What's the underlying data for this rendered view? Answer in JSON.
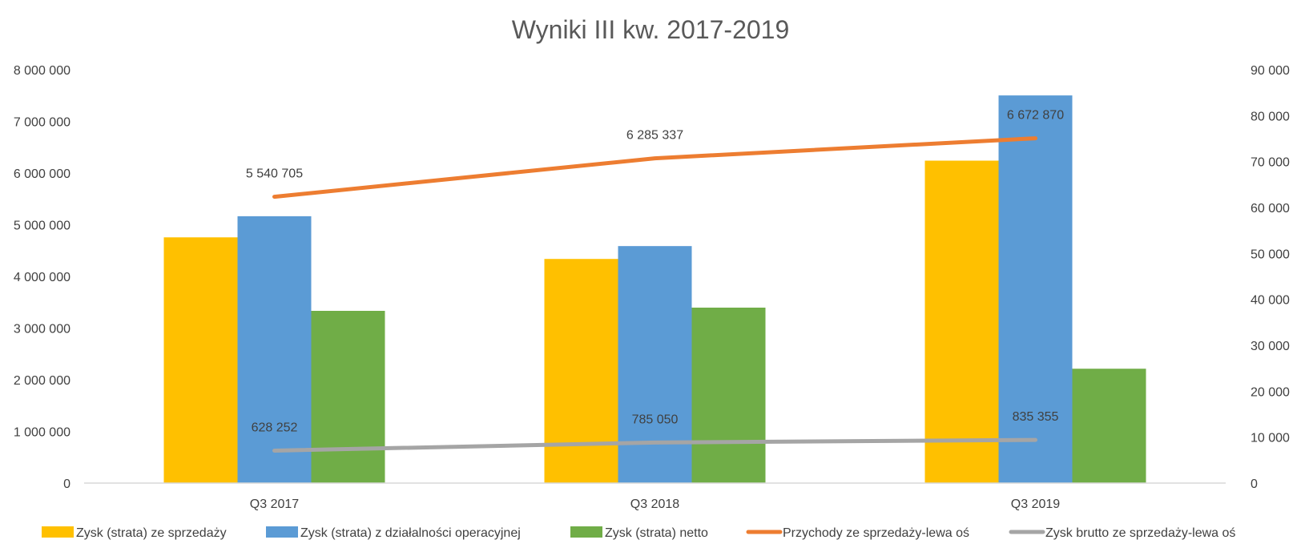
{
  "chart_data": {
    "title": "Wyniki III kw.  2017-2019",
    "type": "bar",
    "categories": [
      "Q3 2017",
      "Q3 2018",
      "Q3 2019"
    ],
    "left_axis": {
      "range": [
        0,
        8000000
      ],
      "ticks": [
        "0",
        "1 000 000",
        "2 000 000",
        "3 000 000",
        "4 000 000",
        "5 000 000",
        "6 000 000",
        "7 000 000",
        "8 000 000"
      ]
    },
    "right_axis": {
      "range": [
        0,
        90000
      ],
      "ticks": [
        "0",
        "10 000",
        "20 000",
        "30 000",
        "40 000",
        "50 000",
        "60 000",
        "70 000",
        "80 000",
        "90 000"
      ]
    },
    "series": [
      {
        "name": "Zysk (strata) ze sprzedaży",
        "type": "bar",
        "axis": "right",
        "color": "#FFC000",
        "values": [
          53500,
          48800,
          70200
        ]
      },
      {
        "name": "Zysk (strata) z działalności operacyjnej",
        "type": "bar",
        "axis": "right",
        "color": "#5B9BD5",
        "values": [
          58100,
          51600,
          84400
        ]
      },
      {
        "name": "Zysk (strata) netto",
        "type": "bar",
        "axis": "right",
        "color": "#70AD47",
        "values": [
          37500,
          38200,
          24900
        ]
      },
      {
        "name": "Przychody ze sprzedaży-lewa oś",
        "type": "line",
        "axis": "left",
        "color": "#ED7D31",
        "values": [
          5540705,
          6285337,
          6672870
        ],
        "labels": [
          "5 540 705",
          "6 285 337",
          "6 672 870"
        ]
      },
      {
        "name": "Zysk brutto ze sprzedaży-lewa oś",
        "type": "line",
        "axis": "left",
        "color": "#A5A5A5",
        "values": [
          628252,
          785050,
          835355
        ],
        "labels": [
          "628 252",
          "785 050",
          "835 355"
        ]
      }
    ],
    "grid": false,
    "legend_position": "bottom"
  }
}
